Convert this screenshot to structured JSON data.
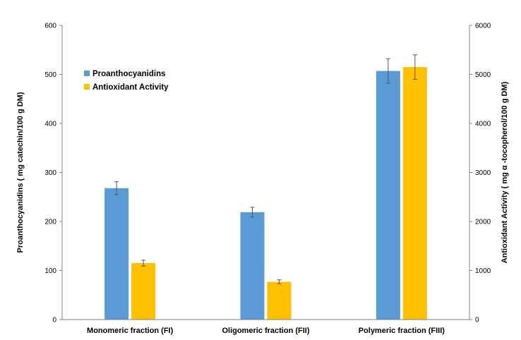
{
  "chart_data": {
    "type": "bar",
    "categories": [
      "Monomeric fraction (FI)",
      "Oligomeric fraction (FII)",
      "Polymeric fraction (FIII)"
    ],
    "series": [
      {
        "name": "Proanthocyanidins",
        "axis": "left",
        "color": "#5b9bd5",
        "values": [
          268,
          219,
          507
        ],
        "errors": [
          13,
          10,
          25
        ]
      },
      {
        "name": "Antioxidant Activity",
        "axis": "right",
        "color": "#ffc000",
        "values": [
          1150,
          770,
          5150
        ],
        "errors": [
          60,
          40,
          250
        ]
      }
    ],
    "ylabel": "Proanthocyanidins ( mg catechin/100 g DM)",
    "y2label": "Antioxidant Activity  ( mg α -tocopherol/100 g DM)",
    "ylim": [
      0,
      600
    ],
    "y2lim": [
      0,
      6000
    ],
    "yticks": [
      "0",
      "100",
      "200",
      "300",
      "400",
      "500",
      "600"
    ],
    "y2ticks": [
      "0",
      "1000",
      "2000",
      "3000",
      "4000",
      "5000",
      "6000"
    ],
    "grid": false,
    "legend": "top-left"
  }
}
